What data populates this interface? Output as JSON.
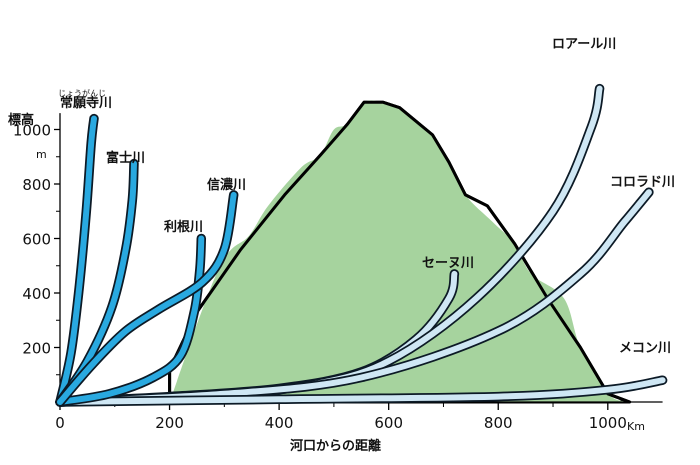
{
  "chart_data": {
    "type": "line",
    "title": "",
    "xlabel": "河口からの距離",
    "xunit": "Km",
    "ylabel": "標高",
    "yunit": "m",
    "xlim": [
      0,
      1100
    ],
    "ylim": [
      0,
      1100
    ],
    "x_ticks": [
      0,
      200,
      400,
      600,
      800,
      1000
    ],
    "x_tick_labels": [
      "0",
      "200",
      "400",
      "600",
      "800",
      "1000"
    ],
    "y_ticks": [
      200,
      400,
      600,
      800,
      1000
    ],
    "y_tick_labels": [
      "200",
      "400",
      "600",
      "800",
      "1000"
    ],
    "grid": false,
    "legend": "labels placed next to each series",
    "colors": {
      "japanese_river": "#29a9e0",
      "foreign_river": "#cfe7f4",
      "river_outline": "#0c1a26",
      "mountain_fill": "#a6d39e",
      "mountain_outline": "#000000"
    },
    "series": [
      {
        "name": "常願寺川",
        "ruby": "じょうがんじ",
        "group": "japan",
        "points": [
          [
            0,
            0
          ],
          [
            20,
            180
          ],
          [
            35,
            420
          ],
          [
            48,
            700
          ],
          [
            57,
            950
          ],
          [
            62,
            1040
          ]
        ]
      },
      {
        "name": "富士川",
        "group": "japan",
        "points": [
          [
            0,
            0
          ],
          [
            50,
            150
          ],
          [
            95,
            350
          ],
          [
            120,
            560
          ],
          [
            132,
            740
          ],
          [
            135,
            875
          ]
        ]
      },
      {
        "name": "利根川",
        "group": "japan",
        "points": [
          [
            0,
            0
          ],
          [
            90,
            30
          ],
          [
            170,
            90
          ],
          [
            220,
            170
          ],
          [
            245,
            330
          ],
          [
            255,
            480
          ],
          [
            258,
            600
          ]
        ]
      },
      {
        "name": "信濃川",
        "group": "japan",
        "points": [
          [
            0,
            0
          ],
          [
            60,
            140
          ],
          [
            120,
            260
          ],
          [
            180,
            340
          ],
          [
            260,
            440
          ],
          [
            300,
            560
          ],
          [
            317,
            760
          ]
        ]
      },
      {
        "name": "セーヌ川",
        "group": "foreign",
        "points": [
          [
            0,
            0
          ],
          [
            200,
            20
          ],
          [
            400,
            50
          ],
          [
            550,
            110
          ],
          [
            650,
            230
          ],
          [
            710,
            380
          ],
          [
            720,
            470
          ]
        ]
      },
      {
        "name": "ロアール川",
        "group": "foreign",
        "points": [
          [
            0,
            0
          ],
          [
            250,
            20
          ],
          [
            450,
            60
          ],
          [
            600,
            150
          ],
          [
            760,
            380
          ],
          [
            900,
            700
          ],
          [
            970,
            1010
          ],
          [
            985,
            1150
          ]
        ]
      },
      {
        "name": "コロラド川",
        "group": "foreign",
        "points": [
          [
            0,
            0
          ],
          [
            300,
            30
          ],
          [
            550,
            90
          ],
          [
            800,
            260
          ],
          [
            950,
            470
          ],
          [
            1030,
            660
          ],
          [
            1075,
            770
          ]
        ]
      },
      {
        "name": "メコン川",
        "group": "foreign",
        "points": [
          [
            0,
            0
          ],
          [
            400,
            10
          ],
          [
            800,
            20
          ],
          [
            1000,
            45
          ],
          [
            1100,
            80
          ]
        ]
      }
    ],
    "annotation_shape": {
      "name": "mountain",
      "outline": [
        [
          200,
          0
        ],
        [
          200,
          120
        ],
        [
          250,
          330
        ],
        [
          330,
          560
        ],
        [
          410,
          760
        ],
        [
          475,
          905
        ],
        [
          525,
          1020
        ],
        [
          555,
          1100
        ],
        [
          590,
          1100
        ],
        [
          620,
          1080
        ],
        [
          680,
          980
        ],
        [
          710,
          880
        ],
        [
          740,
          760
        ],
        [
          780,
          720
        ],
        [
          830,
          580
        ],
        [
          890,
          380
        ],
        [
          950,
          200
        ],
        [
          1000,
          30
        ],
        [
          1040,
          0
        ]
      ],
      "snowline": [
        [
          200,
          0
        ],
        [
          290,
          490
        ],
        [
          345,
          610
        ],
        [
          380,
          720
        ],
        [
          440,
          860
        ],
        [
          475,
          905
        ],
        [
          500,
          1000
        ],
        [
          525,
          1020
        ],
        [
          555,
          1100
        ],
        [
          590,
          1100
        ],
        [
          620,
          1080
        ],
        [
          680,
          980
        ],
        [
          710,
          880
        ],
        [
          740,
          760
        ],
        [
          790,
          660
        ],
        [
          830,
          580
        ],
        [
          860,
          470
        ],
        [
          920,
          380
        ],
        [
          950,
          200
        ],
        [
          1000,
          30
        ],
        [
          1040,
          0
        ]
      ]
    }
  }
}
